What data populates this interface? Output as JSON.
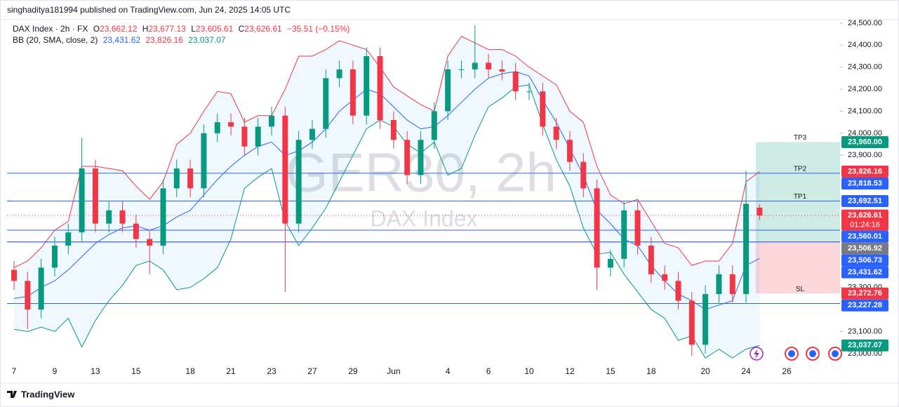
{
  "header": {
    "published": "singhaditya181994 published on TradingView.com, Jun 24, 2025 14:05 UTC",
    "symbol": "DAX Index · 2h · FX",
    "ohlc": [
      {
        "key": "O",
        "value": "23,662.12"
      },
      {
        "key": "H",
        "value": "23,677.13"
      },
      {
        "key": "L",
        "value": "23,605.61"
      },
      {
        "key": "C",
        "value": "23,626.61"
      }
    ],
    "change": "−35.51 (−0.15%)",
    "indicator": "BB (20, SMA, close, 2)",
    "indicator_values": [
      "23,431.62",
      "23,826.16",
      "23,037.07"
    ]
  },
  "footer": {
    "brand": "TradingView"
  },
  "chart_data": {
    "type": "candlestick",
    "watermark": "GER30, 2h",
    "watermark_sub": "DAX Index",
    "up_color": "#089981",
    "down_color": "#f23645",
    "categories": [
      "7",
      null,
      null,
      "9",
      null,
      null,
      "13",
      null,
      null,
      "15",
      null,
      null,
      null,
      "18",
      null,
      null,
      "21",
      null,
      null,
      "23",
      null,
      null,
      "27",
      null,
      null,
      "29",
      null,
      null,
      "Jun",
      null,
      null,
      null,
      "4",
      null,
      null,
      "6",
      null,
      null,
      "10",
      null,
      null,
      "12",
      null,
      null,
      "15",
      null,
      null,
      "18",
      null,
      null,
      null,
      "20",
      null,
      null,
      "24",
      null,
      null,
      "26"
    ],
    "open": [
      23380,
      23330,
      23200,
      23390,
      23490,
      23550,
      23840,
      23590,
      23650,
      23590,
      23520,
      23490,
      23750,
      23840,
      23750,
      24000,
      24050,
      24030,
      23940,
      24030,
      24080,
      23590,
      23970,
      24020,
      24250,
      24290,
      24080,
      24350,
      24060,
      23970,
      23810,
      23970,
      24100,
      24290,
      24290,
      24320,
      24290,
      24280,
      24190,
      24190,
      24030,
      23970,
      23870,
      23750,
      23390,
      23430,
      23650,
      23490,
      23360,
      23330,
      23240,
      23040,
      23270,
      23360,
      23270,
      23662.12,
      null,
      null
    ],
    "high": [
      23420,
      23370,
      23430,
      23530,
      23590,
      23980,
      23880,
      23690,
      23690,
      23630,
      23560,
      23790,
      23880,
      23880,
      24040,
      24090,
      24090,
      24070,
      24070,
      24120,
      24120,
      24010,
      24060,
      24290,
      24330,
      24330,
      24390,
      24390,
      24100,
      24010,
      24010,
      24140,
      24330,
      24330,
      24490,
      24360,
      24330,
      24320,
      24230,
      24230,
      24070,
      24010,
      23910,
      23790,
      23470,
      23690,
      23690,
      23530,
      23400,
      23370,
      23280,
      23310,
      23400,
      23400,
      23830,
      23677.13,
      null,
      null
    ],
    "low": [
      23290,
      23110,
      23160,
      23350,
      23450,
      23510,
      23550,
      23550,
      23550,
      23480,
      23360,
      23450,
      23710,
      23710,
      23710,
      23960,
      23990,
      23900,
      23900,
      23990,
      23280,
      23550,
      23930,
      23980,
      24210,
      24040,
      24040,
      24020,
      23930,
      23770,
      23770,
      23930,
      24060,
      24250,
      24250,
      24250,
      24240,
      24150,
      24150,
      23990,
      23930,
      23830,
      23710,
      23290,
      23350,
      23390,
      23450,
      23320,
      23290,
      23200,
      22990,
      23000,
      23230,
      23230,
      23230,
      23605.61,
      null,
      null
    ],
    "close": [
      23330,
      23200,
      23390,
      23490,
      23550,
      23840,
      23590,
      23650,
      23590,
      23520,
      23490,
      23750,
      23840,
      23750,
      24000,
      24050,
      24030,
      23940,
      24030,
      24080,
      23590,
      23970,
      24020,
      24250,
      24290,
      24080,
      24350,
      24060,
      23970,
      23810,
      23970,
      24100,
      24290,
      24290,
      24320,
      24290,
      24280,
      24190,
      24190,
      24030,
      23970,
      23870,
      23750,
      23390,
      23430,
      23650,
      23490,
      23360,
      23330,
      23240,
      23040,
      23270,
      23360,
      23270,
      23680,
      23626.61,
      null,
      null
    ],
    "series": [
      {
        "name": "Upper",
        "color": "#f23645",
        "values": [
          23390,
          23420,
          23480,
          23560,
          23600,
          23850,
          23850,
          23840,
          23830,
          23760,
          23700,
          23780,
          23950,
          24000,
          24100,
          24190,
          24180,
          24050,
          24080,
          24080,
          24200,
          24350,
          24350,
          24380,
          24420,
          24400,
          24380,
          24300,
          24210,
          24170,
          24130,
          24100,
          24350,
          24440,
          24410,
          24380,
          24380,
          24350,
          24300,
          24260,
          24220,
          24100,
          24050,
          23850,
          23720,
          23680,
          23700,
          23600,
          23500,
          23480,
          23400,
          23420,
          23420,
          23500,
          23780,
          23826.16,
          null,
          null
        ]
      },
      {
        "name": "Basis",
        "color": "#2962ff",
        "values": [
          23250,
          23260,
          23300,
          23330,
          23380,
          23440,
          23500,
          23540,
          23570,
          23580,
          23560,
          23580,
          23620,
          23650,
          23720,
          23790,
          23850,
          23900,
          23940,
          23960,
          23900,
          23920,
          23960,
          24020,
          24100,
          24150,
          24200,
          24180,
          24120,
          24060,
          24020,
          24030,
          24080,
          24140,
          24200,
          24250,
          24270,
          24280,
          24260,
          24150,
          24050,
          23930,
          23810,
          23650,
          23590,
          23520,
          23490,
          23400,
          23330,
          23270,
          23240,
          23200,
          23220,
          23240,
          23400,
          23431.62,
          null,
          null
        ]
      },
      {
        "name": "Lower",
        "color": "#089981",
        "values": [
          23110,
          23100,
          23120,
          23100,
          23160,
          23030,
          23150,
          23240,
          23310,
          23400,
          23420,
          23380,
          23290,
          23300,
          23340,
          23390,
          23520,
          23750,
          23800,
          23840,
          23600,
          23490,
          23570,
          23660,
          23780,
          23900,
          24020,
          24060,
          24030,
          23950,
          23910,
          23960,
          23810,
          23840,
          23990,
          24120,
          24160,
          24210,
          24220,
          24040,
          23880,
          23760,
          23570,
          23450,
          23460,
          23360,
          23280,
          23200,
          23160,
          23060,
          23080,
          22980,
          23020,
          22980,
          23020,
          23037.07,
          null,
          null
        ]
      }
    ],
    "ylim": [
      22955,
      24522
    ],
    "yticks": [
      {
        "value": 24500,
        "label": "24,500.00"
      },
      {
        "value": 24400,
        "label": "24,400.00"
      },
      {
        "value": 24300,
        "label": "24,300.00"
      },
      {
        "value": 24200,
        "label": "24,200.00"
      },
      {
        "value": 24100,
        "label": "24,100.00"
      },
      {
        "value": 24000,
        "label": "24,000.00"
      },
      {
        "value": 23900,
        "label": "23,900.00"
      },
      {
        "value": 23300,
        "label": "23,300.00"
      },
      {
        "value": 23100,
        "label": "23,100.00"
      },
      {
        "value": 23000,
        "label": "23,000.00"
      }
    ],
    "price_levels": [
      {
        "value": 23960,
        "label": "23,960.00",
        "color": "#089981"
      },
      {
        "value": 23826.16,
        "label": "23,826.16",
        "color": "#f23645"
      },
      {
        "value": 23818.53,
        "label": "23,818.53",
        "color": "#2962ff",
        "style": "solid"
      },
      {
        "value": 23692.51,
        "label": "23,692.51",
        "color": "#2962ff",
        "style": "solid"
      },
      {
        "value": 23626.61,
        "label": "23,626.61",
        "color": "#f23645",
        "style": "dotted",
        "timer": "01:24:16"
      },
      {
        "value": 23560.01,
        "label": "23,560.01",
        "color": "#2962ff",
        "style": "solid"
      },
      {
        "value": 23506.92,
        "label": "23,506.92",
        "color": "#787b86",
        "style": "solid"
      },
      {
        "value": 23506.73,
        "label": "23,506.73",
        "color": "#2962ff",
        "style": "solid"
      },
      {
        "value": 23431.62,
        "label": "23,431.62",
        "color": "#2962ff"
      },
      {
        "value": 23272.76,
        "label": "23,272.76",
        "color": "#f23645"
      },
      {
        "value": 23227.28,
        "label": "23,227.28",
        "color": "#2962ff",
        "style": "solid"
      },
      {
        "value": 23037.07,
        "label": "23,037.07",
        "color": "#089981"
      }
    ],
    "position": {
      "entry": 23506.92,
      "levels": [
        {
          "label": "TP3",
          "value": 23960
        },
        {
          "label": "TP2",
          "value": 23818.53
        },
        {
          "label": "TP1",
          "value": 23692.51
        },
        {
          "label": "SL",
          "value": 23272.76
        }
      ]
    }
  }
}
